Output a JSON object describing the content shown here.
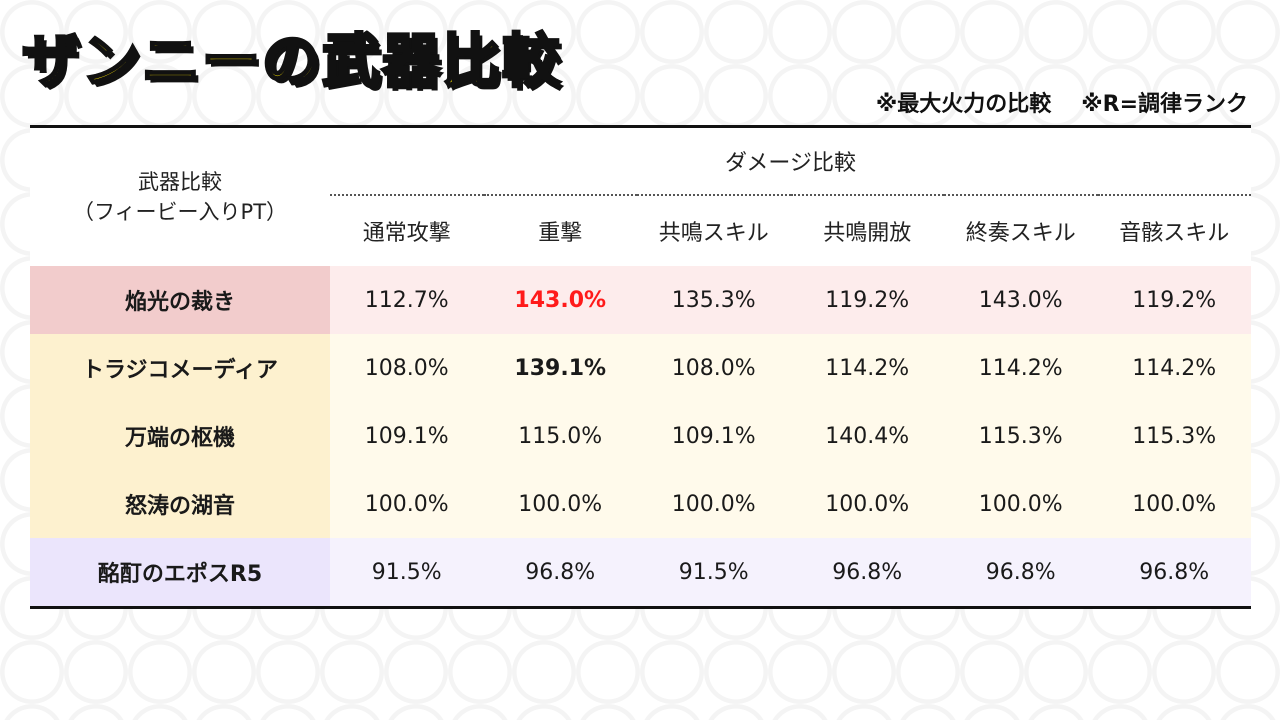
{
  "title": "ザンニーの武器比較",
  "notes": [
    "※最大火力の比較",
    "※R=調律ランク"
  ],
  "table": {
    "weapon_header_line1": "武器比較",
    "weapon_header_line2": "（フィービー入りPT）",
    "group_header": "ダメージ比較",
    "columns": [
      "通常攻撃",
      "重撃",
      "共鳴スキル",
      "共鳴開放",
      "終奏スキル",
      "音骸スキル"
    ],
    "rows": [
      {
        "name": "焔光の裁き",
        "values": [
          "112.7%",
          "143.0%",
          "135.3%",
          "119.2%",
          "143.0%",
          "119.2%"
        ],
        "tint": "#f2cccc",
        "highlight_index": 1,
        "highlight_color": "#ff1a1a"
      },
      {
        "name": "トラジコメーディア",
        "values": [
          "108.0%",
          "139.1%",
          "108.0%",
          "114.2%",
          "114.2%",
          "114.2%"
        ],
        "tint": "#fdf1cf",
        "highlight_index": 1,
        "highlight_color": "#111111"
      },
      {
        "name": "万端の枢機",
        "values": [
          "109.1%",
          "115.0%",
          "109.1%",
          "140.4%",
          "115.3%",
          "115.3%"
        ],
        "tint": "#fdf1cf"
      },
      {
        "name": "怒涛の湖音",
        "values": [
          "100.0%",
          "100.0%",
          "100.0%",
          "100.0%",
          "100.0%",
          "100.0%"
        ],
        "tint": "#fdf1cf"
      },
      {
        "name": "酩酊のエポスR5",
        "values": [
          "91.5%",
          "96.8%",
          "91.5%",
          "96.8%",
          "96.8%",
          "96.8%"
        ],
        "tint": "#ebe5fc"
      }
    ]
  }
}
